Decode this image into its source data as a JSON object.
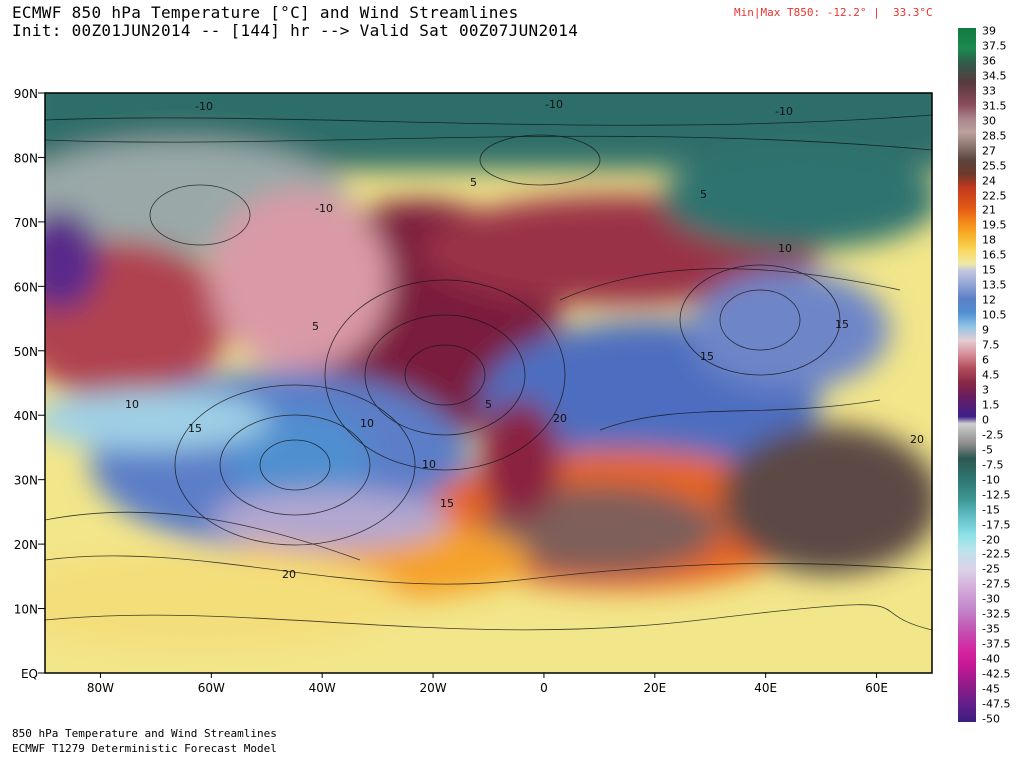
{
  "header": {
    "title_line1": "ECMWF 850 hPa Temperature [°C] and Wind Streamlines",
    "title_line2": "Init: 00Z01JUN2014 -- [144] hr --> Valid Sat 00Z07JUN2014",
    "minmax": "Min|Max T850: -12.2° |  33.3°C"
  },
  "map": {
    "lat_labels": [
      "90N",
      "80N",
      "70N",
      "60N",
      "50N",
      "40N",
      "30N",
      "20N",
      "10N",
      "EQ"
    ],
    "lon_labels": [
      "80W",
      "60W",
      "40W",
      "20W",
      "0",
      "20E",
      "40E",
      "60E"
    ],
    "contour_labels": [
      "-10",
      "-10",
      "-10",
      "-10",
      "5",
      "5",
      "5",
      "10",
      "10",
      "10",
      "10",
      "15",
      "15",
      "15",
      "20",
      "20",
      "20",
      "5",
      "15"
    ]
  },
  "colorbar": {
    "labels": [
      "39",
      "37.5",
      "36",
      "34.5",
      "33",
      "31.5",
      "30",
      "28.5",
      "27",
      "25.5",
      "24",
      "22.5",
      "21",
      "19.5",
      "18",
      "16.5",
      "15",
      "13.5",
      "12",
      "10.5",
      "9",
      "7.5",
      "6",
      "4.5",
      "3",
      "1.5",
      "0",
      "-2.5",
      "-5",
      "-7.5",
      "-10",
      "-12.5",
      "-15",
      "-17.5",
      "-20",
      "-22.5",
      "-25",
      "-27.5",
      "-30",
      "-32.5",
      "-35",
      "-37.5",
      "-40",
      "-42.5",
      "-45",
      "-47.5",
      "-50"
    ]
  },
  "footer": {
    "line1": "850 hPa Temperature and Wind Streamlines",
    "line2": "ECMWF T1279 Deterministic Forecast Model"
  }
}
